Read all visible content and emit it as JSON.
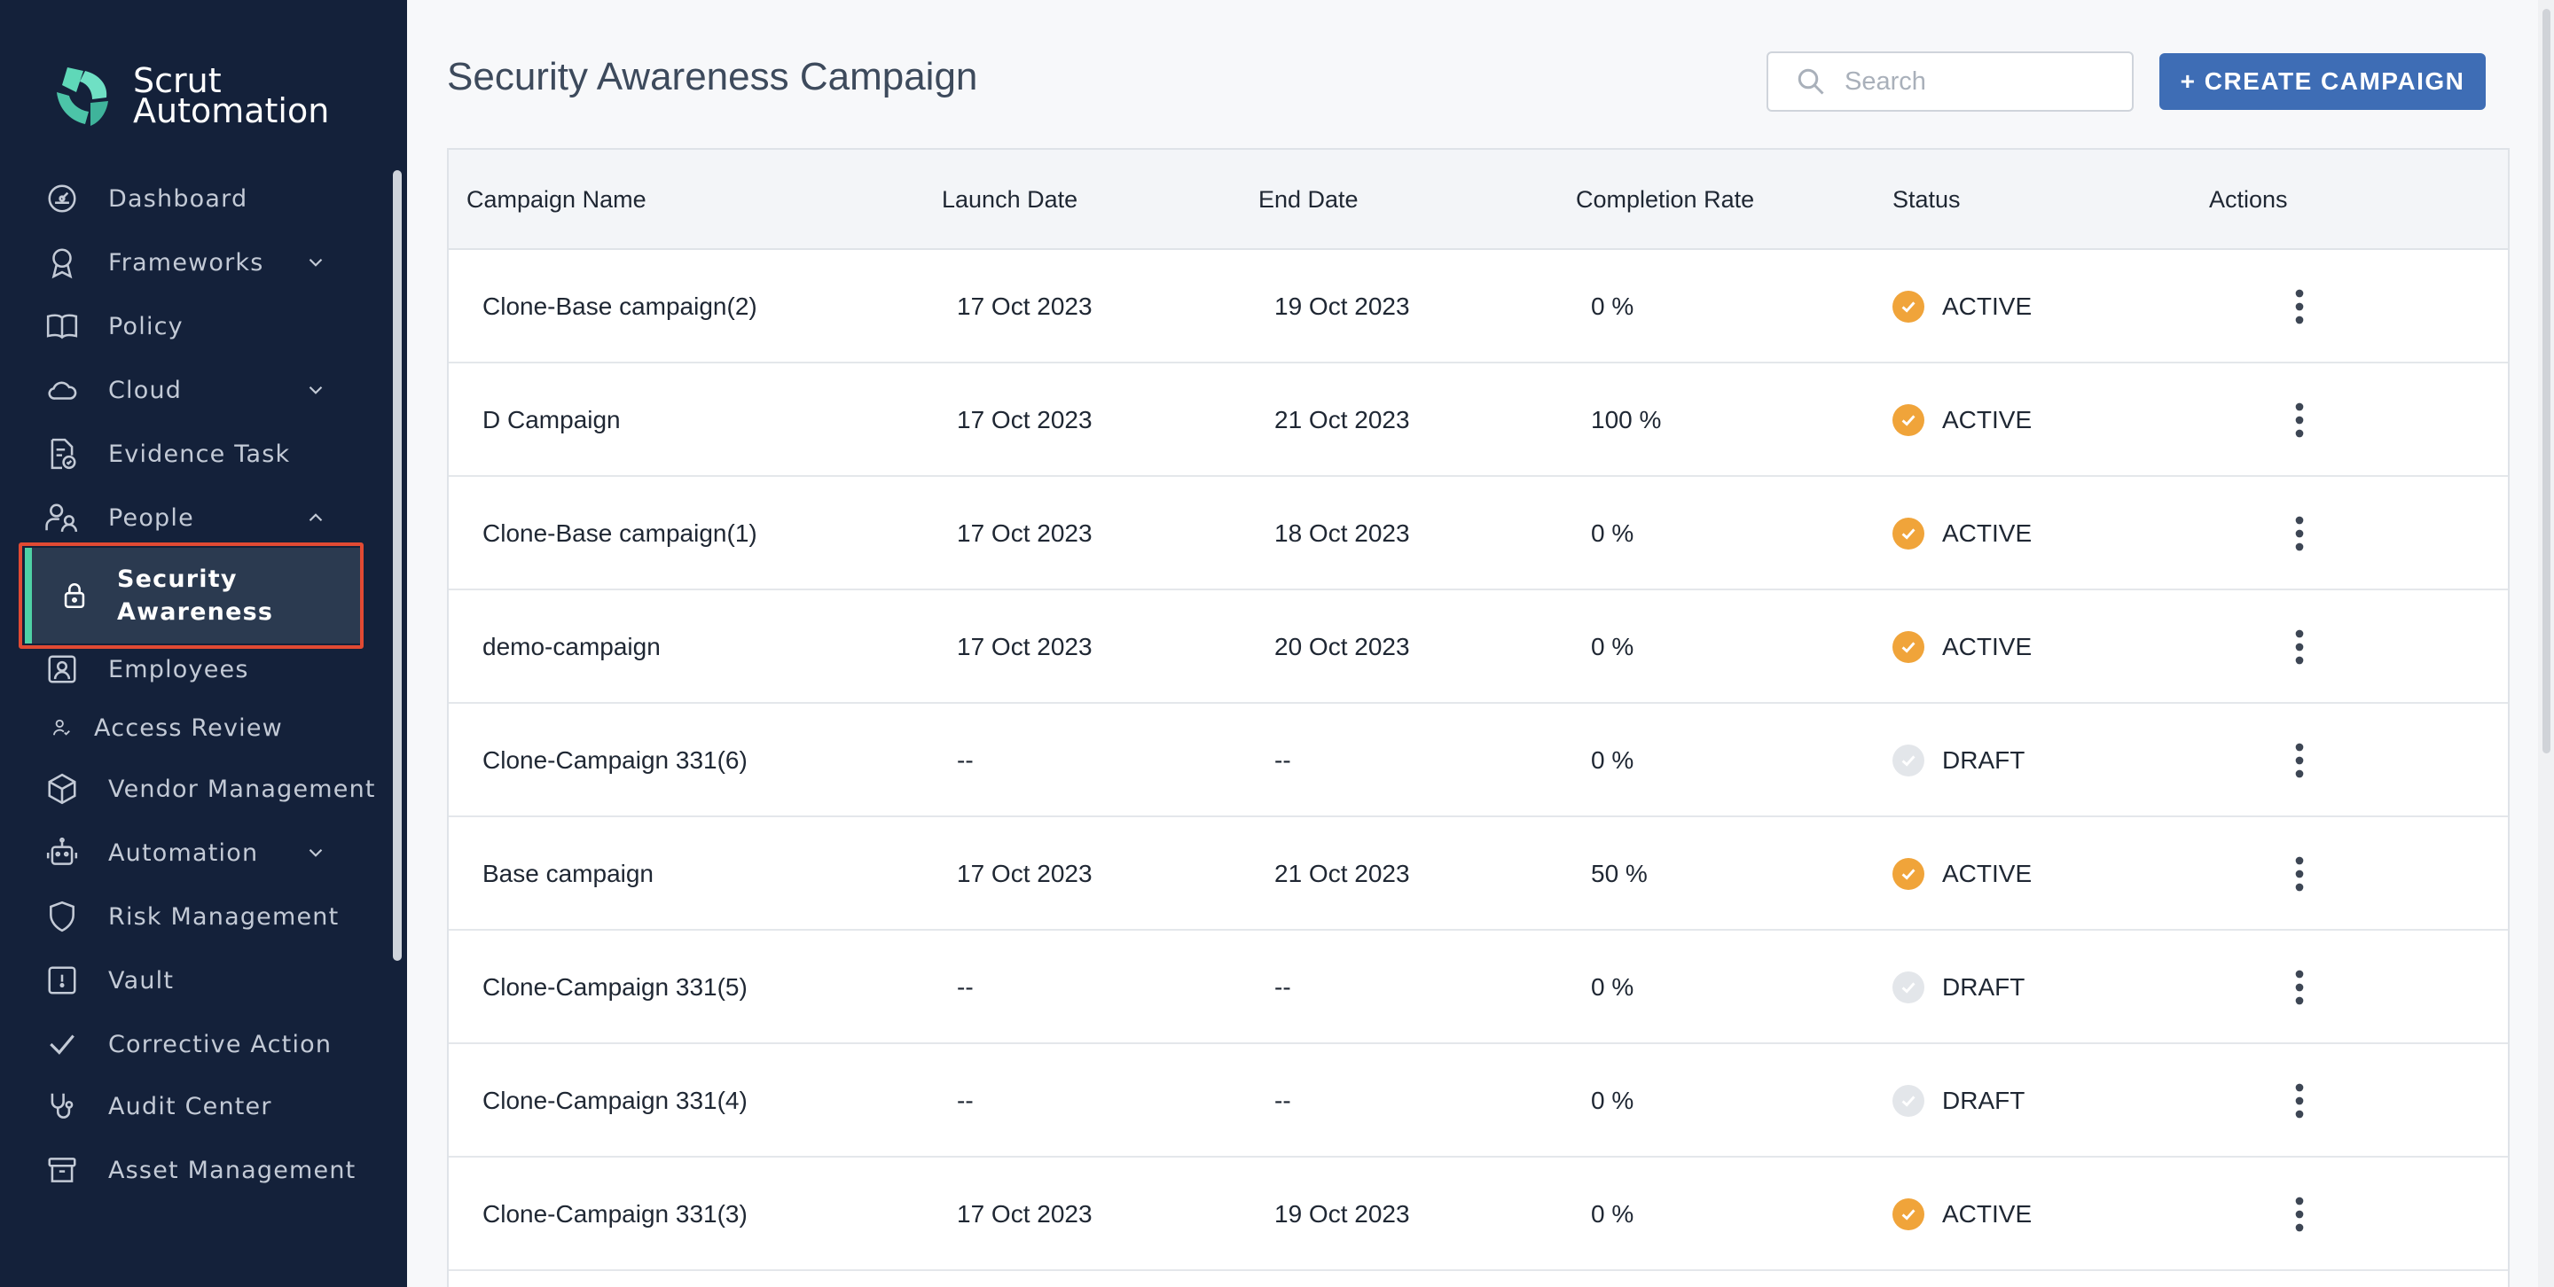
{
  "brand": {
    "line1": "Scrut",
    "line2": "Automation"
  },
  "sidebar": {
    "items": [
      {
        "label": "Dashboard",
        "icon": "dashboard-gauge-icon"
      },
      {
        "label": "Frameworks",
        "icon": "award-icon",
        "chevron": "down"
      },
      {
        "label": "Policy",
        "icon": "book-icon"
      },
      {
        "label": "Cloud",
        "icon": "cloud-icon",
        "chevron": "down"
      },
      {
        "label": "Evidence Task",
        "icon": "document-check-icon"
      },
      {
        "label": "People",
        "icon": "people-icon",
        "chevron": "up"
      },
      {
        "label": "Security Awareness",
        "icon": "lock-icon",
        "active": true
      },
      {
        "label": "Employees",
        "icon": "employee-badge-icon"
      },
      {
        "label": "Access Review",
        "icon": "user-review-icon"
      },
      {
        "label": "Vendor Management",
        "icon": "package-icon"
      },
      {
        "label": "Automation",
        "icon": "robot-icon",
        "chevron": "down"
      },
      {
        "label": "Risk Management",
        "icon": "shield-icon"
      },
      {
        "label": "Vault",
        "icon": "vault-icon"
      },
      {
        "label": "Corrective Action",
        "icon": "check-icon"
      },
      {
        "label": "Audit Center",
        "icon": "stethoscope-icon"
      },
      {
        "label": "Asset Management",
        "icon": "archive-box-icon"
      }
    ]
  },
  "header": {
    "title": "Security Awareness Campaign",
    "search_placeholder": "Search",
    "create_label": "+ CREATE CAMPAIGN"
  },
  "table": {
    "columns": [
      "Campaign Name",
      "Launch Date",
      "End Date",
      "Completion Rate",
      "Status",
      "Actions"
    ],
    "rows": [
      {
        "name": "Clone-Base campaign(2)",
        "launch": "17 Oct 2023",
        "end": "19 Oct 2023",
        "rate": "0 %",
        "status": "ACTIVE"
      },
      {
        "name": "D Campaign",
        "launch": "17 Oct 2023",
        "end": "21 Oct 2023",
        "rate": "100 %",
        "status": "ACTIVE"
      },
      {
        "name": "Clone-Base campaign(1)",
        "launch": "17 Oct 2023",
        "end": "18 Oct 2023",
        "rate": "0 %",
        "status": "ACTIVE"
      },
      {
        "name": "demo-campaign",
        "launch": "17 Oct 2023",
        "end": "20 Oct 2023",
        "rate": "0 %",
        "status": "ACTIVE"
      },
      {
        "name": "Clone-Campaign 331(6)",
        "launch": "--",
        "end": "--",
        "rate": "0 %",
        "status": "DRAFT"
      },
      {
        "name": "Base campaign",
        "launch": "17 Oct 2023",
        "end": "21 Oct 2023",
        "rate": "50 %",
        "status": "ACTIVE"
      },
      {
        "name": "Clone-Campaign 331(5)",
        "launch": "--",
        "end": "--",
        "rate": "0 %",
        "status": "DRAFT"
      },
      {
        "name": "Clone-Campaign 331(4)",
        "launch": "--",
        "end": "--",
        "rate": "0 %",
        "status": "DRAFT"
      },
      {
        "name": "Clone-Campaign 331(3)",
        "launch": "17 Oct 2023",
        "end": "19 Oct 2023",
        "rate": "0 %",
        "status": "ACTIVE"
      }
    ]
  },
  "colors": {
    "sidebar_bg": "#14213a",
    "active_accent": "#4fd1a5",
    "primary_button": "#3e6db5",
    "status_active": "#f0a43a",
    "status_draft": "#e3e6ea",
    "highlight": "#e14a33"
  }
}
